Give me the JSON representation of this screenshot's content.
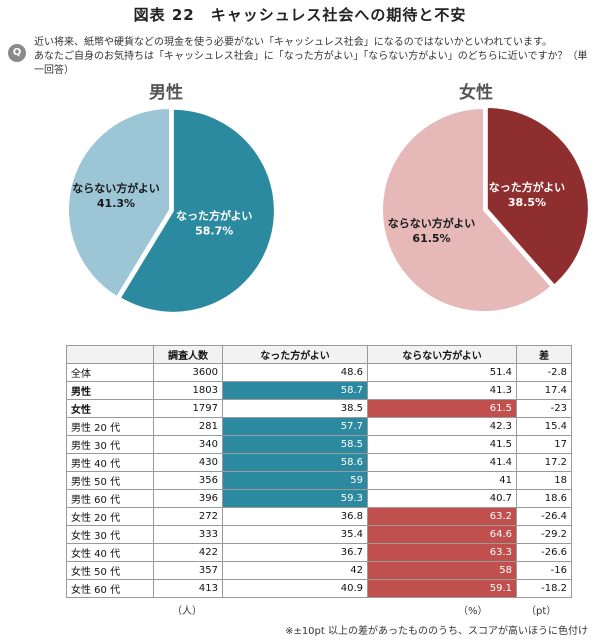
{
  "title": "図表 22　キャッシュレス社会への期待と不安",
  "question": {
    "badge": "Q",
    "line1": "近い将来、紙幣や硬貨などの現金を使う必要がない「キャッシュレス社会」になるのではないかといわれています。",
    "line2": "あなたご自身のお気持ちは「キャッシュレス社会」に「なった方がよい」「ならない方がよい」のどちらに近いですか？（単一回答）"
  },
  "colors": {
    "male_yes": "#2b8aa0",
    "male_no": "#9cc6d6",
    "female_yes": "#8e2e2e",
    "female_no": "#e6b8b8",
    "highlight_blue": "#2b8aa0",
    "highlight_red": "#c0504d"
  },
  "chart_data": [
    {
      "type": "pie",
      "title": "男性",
      "slices": [
        {
          "label": "なった方がよい",
          "value": 58.7,
          "value_label": "58.7%"
        },
        {
          "label": "ならない方がよい",
          "value": 41.3,
          "value_label": "41.3%"
        }
      ]
    },
    {
      "type": "pie",
      "title": "女性",
      "slices": [
        {
          "label": "なった方がよい",
          "value": 38.5,
          "value_label": "38.5%"
        },
        {
          "label": "ならない方がよい",
          "value": 61.5,
          "value_label": "61.5%"
        }
      ]
    },
    {
      "type": "table",
      "columns": [
        "",
        "調査人数",
        "なった方がよい",
        "ならない方がよい",
        "差"
      ],
      "rows": [
        {
          "label": "全体",
          "n": "3600",
          "yes": "48.6",
          "no": "51.4",
          "diff": "-2.8",
          "bold": false,
          "hi": ""
        },
        {
          "label": "男性",
          "n": "1803",
          "yes": "58.7",
          "no": "41.3",
          "diff": "17.4",
          "bold": true,
          "hi": "yes"
        },
        {
          "label": "女性",
          "n": "1797",
          "yes": "38.5",
          "no": "61.5",
          "diff": "-23",
          "bold": true,
          "hi": "no"
        },
        {
          "label": "男性 20 代",
          "n": "281",
          "yes": "57.7",
          "no": "42.3",
          "diff": "15.4",
          "bold": false,
          "hi": "yes"
        },
        {
          "label": "男性 30 代",
          "n": "340",
          "yes": "58.5",
          "no": "41.5",
          "diff": "17",
          "bold": false,
          "hi": "yes"
        },
        {
          "label": "男性 40 代",
          "n": "430",
          "yes": "58.6",
          "no": "41.4",
          "diff": "17.2",
          "bold": false,
          "hi": "yes"
        },
        {
          "label": "男性 50 代",
          "n": "356",
          "yes": "59",
          "no": "41",
          "diff": "18",
          "bold": false,
          "hi": "yes"
        },
        {
          "label": "男性 60 代",
          "n": "396",
          "yes": "59.3",
          "no": "40.7",
          "diff": "18.6",
          "bold": false,
          "hi": "yes"
        },
        {
          "label": "女性 20 代",
          "n": "272",
          "yes": "36.8",
          "no": "63.2",
          "diff": "-26.4",
          "bold": false,
          "hi": "no"
        },
        {
          "label": "女性 30 代",
          "n": "333",
          "yes": "35.4",
          "no": "64.6",
          "diff": "-29.2",
          "bold": false,
          "hi": "no"
        },
        {
          "label": "女性 40 代",
          "n": "422",
          "yes": "36.7",
          "no": "63.3",
          "diff": "-26.6",
          "bold": false,
          "hi": "no"
        },
        {
          "label": "女性 50 代",
          "n": "357",
          "yes": "42",
          "no": "58",
          "diff": "-16",
          "bold": false,
          "hi": "no"
        },
        {
          "label": "女性 60 代",
          "n": "413",
          "yes": "40.9",
          "no": "59.1",
          "diff": "-18.2",
          "bold": false,
          "hi": "no"
        }
      ],
      "units": {
        "people": "（人）",
        "pct": "（%）",
        "pt": "（pt）"
      }
    }
  ],
  "note": "※±10pt 以上の差があったもののうち、スコアが高いほうに色付け"
}
